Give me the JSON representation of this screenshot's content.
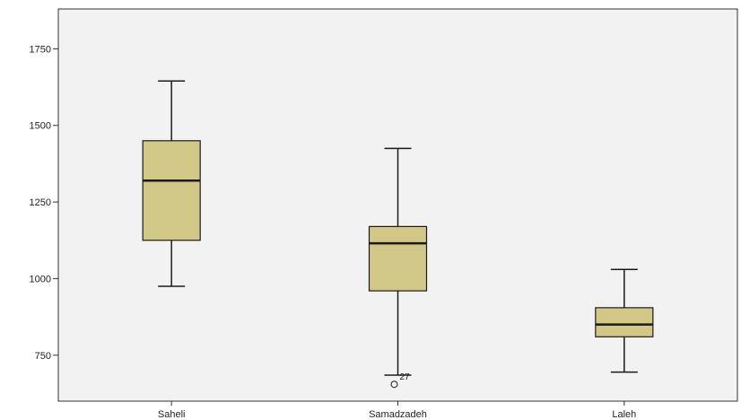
{
  "chart_data": {
    "type": "boxplot",
    "title": "",
    "xlabel": "",
    "ylabel": "",
    "ylim": [
      600,
      1880
    ],
    "y_ticks": [
      750,
      1000,
      1250,
      1500,
      1750
    ],
    "grid": false,
    "categories": [
      "Saheli",
      "Samadzadeh",
      "Laleh"
    ],
    "boxes": [
      {
        "category": "Saheli",
        "min": 975,
        "q1": 1125,
        "median": 1320,
        "q3": 1450,
        "max": 1645,
        "outliers": []
      },
      {
        "category": "Samadzadeh",
        "min": 685,
        "q1": 960,
        "median": 1115,
        "q3": 1170,
        "max": 1425,
        "outliers": [
          {
            "value": 655,
            "label": "27"
          }
        ]
      },
      {
        "category": "Laleh",
        "min": 695,
        "q1": 810,
        "median": 850,
        "q3": 905,
        "max": 1030,
        "outliers": []
      }
    ]
  },
  "colors": {
    "box_fill": "#d1c787",
    "box_stroke": "#1a1a1a",
    "plot_background": "#f2f2f2",
    "axis": "#333333"
  }
}
